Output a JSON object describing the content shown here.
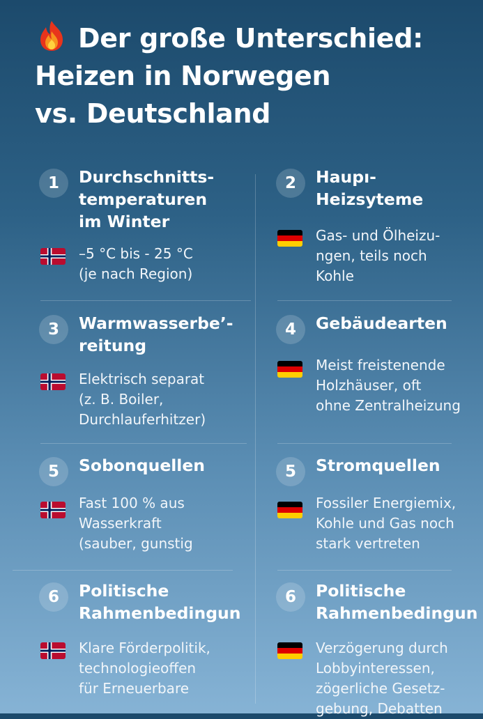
{
  "title_lines": [
    "Der große Unterschied:",
    "Heizen in Norwegen",
    "vs. Deutschland"
  ],
  "cards": [
    {
      "number": "1",
      "heading": [
        "Durchschnitts-",
        "temperaturen",
        "im Winter"
      ],
      "flag": "norway-flag",
      "text": [
        "–5 °C bis - 25 °C",
        "(je nach Region)"
      ]
    },
    {
      "number": "2",
      "heading": [
        "Haupı-",
        "Heizsyteme"
      ],
      "flag": "germany-flag",
      "text": [
        "Gas- und Ölheizu-",
        "ngen, teils noch",
        "Kohle"
      ]
    },
    {
      "number": "3",
      "heading": [
        "Warmwasserbe’-",
        "reitung"
      ],
      "flag": "norway-flag",
      "text": [
        "Elektrisch separat",
        "(z. B. Boiler,",
        "Durchlauferhitzer)"
      ]
    },
    {
      "number": "4",
      "heading": [
        "Gebäudearten"
      ],
      "flag": "germany-flag",
      "text": [
        "Meist freistenende",
        "Holzhäuser, oft",
        "ohne Zentralheizung"
      ]
    },
    {
      "number": "5",
      "heading": [
        "Sobonquellen"
      ],
      "flag": "norway-flag",
      "text": [
        "Fast 100 % aus",
        "Wasserkraft",
        "(sauber, gunstig"
      ]
    },
    {
      "number": "5",
      "heading": [
        "Stromquellen"
      ],
      "flag": "germany-flag",
      "text": [
        "Fossiler Energiemix,",
        "Kohle und Gas noch",
        "stark vertreten"
      ]
    },
    {
      "number": "6",
      "heading": [
        "Politische",
        "Rahmenbedingun"
      ],
      "flag": "norway-flag",
      "text": [
        "Klare Förderpolitik,",
        "technologieoffen",
        "für Erneuerbare"
      ]
    },
    {
      "number": "6",
      "heading": [
        "Politische",
        "Rahmenbedingun"
      ],
      "flag": "germany-flag",
      "text": [
        "Verzögerung durch",
        "Lobbyinteressen,",
        "zögerliche Gesetz-",
        "gebung, Debatten"
      ]
    }
  ],
  "colors": {
    "norway_red": "#ba0c2f",
    "norway_blue": "#00205b",
    "germany_black": "#000000",
    "germany_red": "#dd0000",
    "germany_gold": "#ffce00"
  }
}
